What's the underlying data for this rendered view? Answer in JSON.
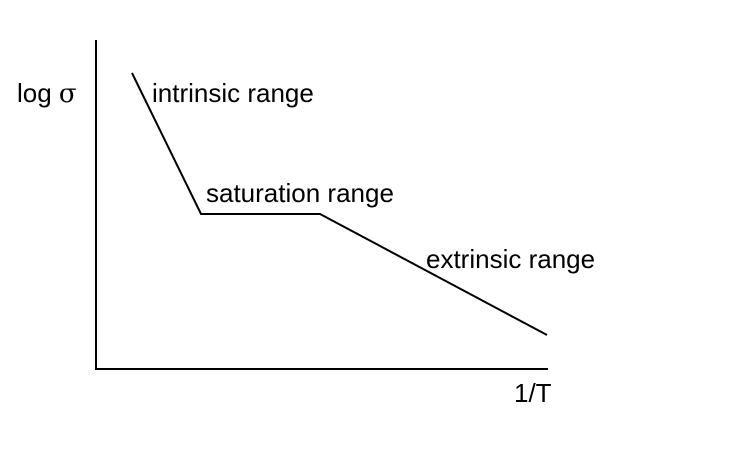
{
  "axes": {
    "y_label_prefix": "log ",
    "y_label_symbol": "σ",
    "x_label": "1/T"
  },
  "regions": {
    "intrinsic": "intrinsic range",
    "saturation": "saturation range",
    "extrinsic": "extrinsic range"
  },
  "colors": {
    "line": "#000000",
    "text": "#000000",
    "background": "#ffffff"
  }
}
